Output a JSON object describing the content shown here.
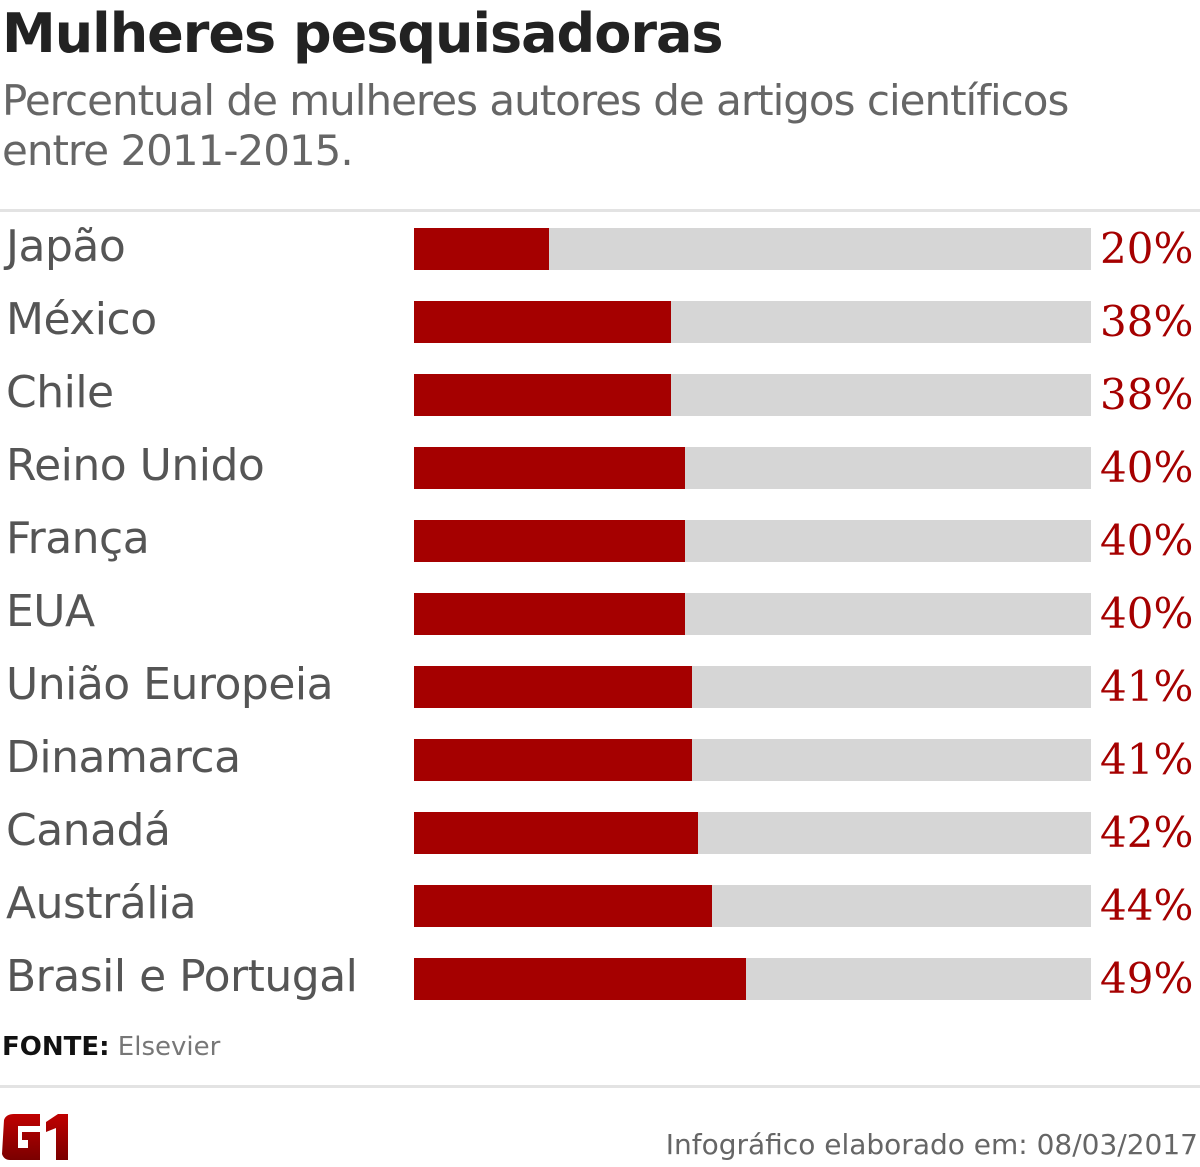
{
  "header": {
    "title": "Mulheres pesquisadoras",
    "subtitle": "Percentual de mulheres autores de artigos científicos entre 2011-2015."
  },
  "chart_data": {
    "type": "bar",
    "orientation": "horizontal",
    "title": "Mulheres pesquisadoras",
    "subtitle": "Percentual de mulheres autores de artigos científicos entre 2011-2015.",
    "categories": [
      "Japão",
      "México",
      "Chile",
      "Reino Unido",
      "França",
      "EUA",
      "União Europeia",
      "Dinamarca",
      "Canadá",
      "Austrália",
      "Brasil e Portugal"
    ],
    "values": [
      20,
      38,
      38,
      40,
      40,
      40,
      41,
      41,
      42,
      44,
      49
    ],
    "value_labels": [
      "20%",
      "38%",
      "38%",
      "40%",
      "40%",
      "40%",
      "41%",
      "41%",
      "42%",
      "44%",
      "49%"
    ],
    "xlim": [
      0,
      100
    ],
    "colors": {
      "fill": "#a50000",
      "track": "#d6d6d6"
    }
  },
  "source": {
    "label": "FONTE:",
    "value": "Elsevier"
  },
  "footer": {
    "logo": "G1",
    "text": "Infográfico elaborado em: 08/03/2017"
  }
}
